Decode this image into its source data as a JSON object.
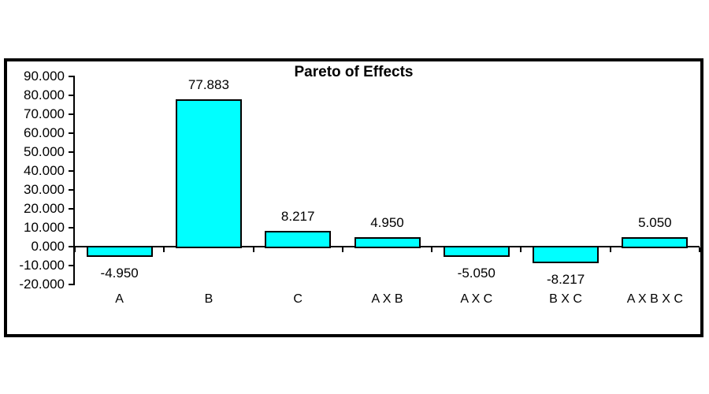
{
  "chart_data": {
    "type": "bar",
    "title": "Pareto of Effects",
    "categories": [
      "A",
      "B",
      "C",
      "A X B",
      "A X C",
      "B X C",
      "A X B X C"
    ],
    "values": [
      -4.95,
      77.883,
      8.217,
      4.95,
      -5.05,
      -8.217,
      5.05
    ],
    "value_labels": [
      "-4.950",
      "77.883",
      "8.217",
      "4.950",
      "-5.050",
      "-8.217",
      "5.050"
    ],
    "ytick_labels": [
      "90.000",
      "80.000",
      "70.000",
      "60.000",
      "50.000",
      "40.000",
      "30.000",
      "20.000",
      "10.000",
      "0.000",
      "-10.000",
      "-20.000"
    ],
    "ytick_values": [
      90,
      80,
      70,
      60,
      50,
      40,
      30,
      20,
      10,
      0,
      -10,
      -20
    ],
    "ylim": [
      -20,
      90
    ],
    "xlabel": "",
    "ylabel": "",
    "grid": false,
    "legend": "none",
    "colors": {
      "bar_fill": "#00FFFF",
      "bar_border": "#000000",
      "axis": "#000000",
      "frame_border": "#000000",
      "background": "#FFFFFF",
      "text": "#000000"
    }
  }
}
